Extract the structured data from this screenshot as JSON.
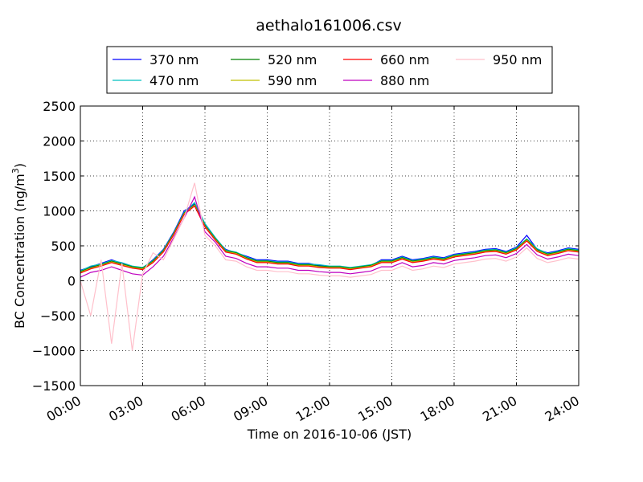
{
  "chart_data": {
    "type": "line",
    "title": "aethalo161006.csv",
    "xlabel": "Time on 2016-10-06 (JST)",
    "ylabel": "BC Concentration (ng/m",
    "ylabel_sup": "3",
    "ylabel_tail": ")",
    "xlim": [
      0,
      24
    ],
    "ylim": [
      -1500,
      2500
    ],
    "x_ticks": [
      0,
      3,
      6,
      9,
      12,
      15,
      18,
      21,
      24
    ],
    "x_tick_labels": [
      "00:00",
      "03:00",
      "06:00",
      "09:00",
      "12:00",
      "15:00",
      "18:00",
      "21:00",
      "24:00"
    ],
    "y_ticks": [
      -1500,
      -1000,
      -500,
      0,
      500,
      1000,
      1500,
      2000,
      2500
    ],
    "y_tick_labels": [
      "−1500",
      "−1000",
      "−500",
      "0",
      "500",
      "1000",
      "1500",
      "2000",
      "2500"
    ],
    "grid": "dotted",
    "legend_placement": "top-center",
    "legend_ncol": 4,
    "x": [
      0,
      0.5,
      1,
      1.5,
      2,
      2.5,
      3,
      3.5,
      4,
      4.5,
      5,
      5.5,
      6,
      6.5,
      7,
      7.5,
      8,
      8.5,
      9,
      9.5,
      10,
      10.5,
      11,
      11.5,
      12,
      12.5,
      13,
      13.5,
      14,
      14.5,
      15,
      15.5,
      16,
      16.5,
      17,
      17.5,
      18,
      18.5,
      19,
      19.5,
      20,
      20.5,
      21,
      21.5,
      22,
      22.5,
      23,
      23.5,
      24
    ],
    "series": [
      {
        "name": "370 nm",
        "color": "#0000ff",
        "values": [
          150,
          200,
          250,
          300,
          250,
          200,
          180,
          300,
          450,
          700,
          1000,
          1100,
          800,
          600,
          450,
          400,
          350,
          300,
          300,
          280,
          280,
          250,
          250,
          220,
          200,
          200,
          180,
          200,
          220,
          300,
          300,
          350,
          300,
          320,
          350,
          330,
          380,
          400,
          420,
          450,
          460,
          420,
          480,
          650,
          450,
          400,
          430,
          470,
          450
        ]
      },
      {
        "name": "470 nm",
        "color": "#00c0c0",
        "values": [
          140,
          210,
          240,
          290,
          260,
          210,
          190,
          290,
          440,
          690,
          980,
          1120,
          820,
          620,
          440,
          410,
          340,
          290,
          290,
          270,
          270,
          240,
          240,
          230,
          210,
          210,
          190,
          210,
          230,
          290,
          290,
          340,
          290,
          310,
          340,
          320,
          370,
          390,
          410,
          440,
          450,
          410,
          470,
          600,
          460,
          390,
          420,
          460,
          440
        ]
      },
      {
        "name": "520 nm",
        "color": "#008000",
        "values": [
          130,
          190,
          230,
          280,
          240,
          200,
          180,
          280,
          430,
          680,
          970,
          1090,
          790,
          600,
          430,
          400,
          330,
          280,
          280,
          260,
          260,
          230,
          230,
          210,
          200,
          200,
          180,
          200,
          220,
          280,
          280,
          330,
          280,
          300,
          330,
          310,
          360,
          380,
          400,
          430,
          440,
          400,
          460,
          590,
          440,
          380,
          410,
          450,
          430
        ]
      },
      {
        "name": "590 nm",
        "color": "#c0c000",
        "values": [
          120,
          180,
          220,
          270,
          230,
          190,
          170,
          270,
          420,
          670,
          960,
          1080,
          780,
          590,
          420,
          390,
          320,
          270,
          270,
          250,
          250,
          220,
          220,
          200,
          190,
          190,
          170,
          190,
          210,
          270,
          270,
          320,
          270,
          290,
          320,
          300,
          350,
          370,
          390,
          420,
          430,
          390,
          450,
          580,
          430,
          370,
          400,
          440,
          420
        ]
      },
      {
        "name": "660 nm",
        "color": "#ff0000",
        "values": [
          110,
          170,
          210,
          260,
          220,
          180,
          160,
          260,
          410,
          660,
          950,
          1070,
          770,
          580,
          410,
          380,
          310,
          260,
          260,
          240,
          240,
          210,
          210,
          190,
          180,
          180,
          160,
          180,
          200,
          260,
          260,
          310,
          260,
          280,
          310,
          290,
          340,
          360,
          380,
          410,
          420,
          380,
          440,
          570,
          420,
          360,
          390,
          430,
          410
        ]
      },
      {
        "name": "880 nm",
        "color": "#bf00bf",
        "values": [
          50,
          120,
          150,
          200,
          150,
          100,
          80,
          200,
          350,
          620,
          900,
          1200,
          700,
          550,
          350,
          320,
          250,
          200,
          200,
          180,
          180,
          150,
          150,
          130,
          120,
          120,
          100,
          120,
          140,
          200,
          200,
          260,
          200,
          220,
          260,
          240,
          290,
          310,
          330,
          360,
          370,
          330,
          390,
          520,
          370,
          310,
          340,
          380,
          360
        ]
      },
      {
        "name": "950 nm",
        "color": "#ffc0cb",
        "values": [
          0,
          -500,
          300,
          -900,
          250,
          -1000,
          100,
          400,
          300,
          600,
          900,
          1400,
          650,
          500,
          300,
          280,
          200,
          150,
          150,
          130,
          130,
          100,
          100,
          80,
          70,
          70,
          50,
          70,
          90,
          150,
          150,
          210,
          150,
          170,
          210,
          190,
          240,
          260,
          280,
          310,
          320,
          280,
          340,
          470,
          320,
          260,
          290,
          330,
          310
        ]
      }
    ]
  }
}
